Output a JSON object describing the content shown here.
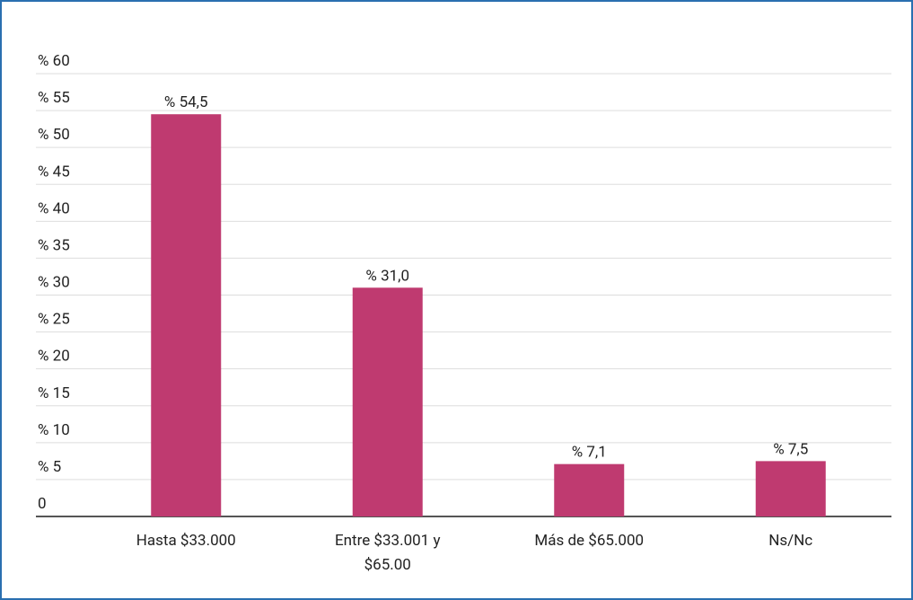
{
  "chart_data": {
    "type": "bar",
    "categories": [
      "Hasta $33.000",
      "Entre $33.001 y $65.00",
      "Más de $65.000",
      "Ns/Nc"
    ],
    "values": [
      54.5,
      31.0,
      7.1,
      7.5
    ],
    "value_labels": [
      "% 54,5",
      "% 31,0",
      "% 7,1",
      "% 7,5"
    ],
    "color": "#bf3a70",
    "ylim": [
      0,
      60
    ],
    "yticks": [
      {
        "value": 0,
        "label": "0"
      },
      {
        "value": 5,
        "label": "% 5"
      },
      {
        "value": 10,
        "label": "% 10"
      },
      {
        "value": 15,
        "label": "% 15"
      },
      {
        "value": 20,
        "label": "% 20"
      },
      {
        "value": 25,
        "label": "% 25"
      },
      {
        "value": 30,
        "label": "% 30"
      },
      {
        "value": 35,
        "label": "% 35"
      },
      {
        "value": 40,
        "label": "% 40"
      },
      {
        "value": 45,
        "label": "% 45"
      },
      {
        "value": 50,
        "label": "% 50"
      },
      {
        "value": 55,
        "label": "% 55"
      },
      {
        "value": 60,
        "label": "% 60"
      }
    ],
    "grid": true
  }
}
